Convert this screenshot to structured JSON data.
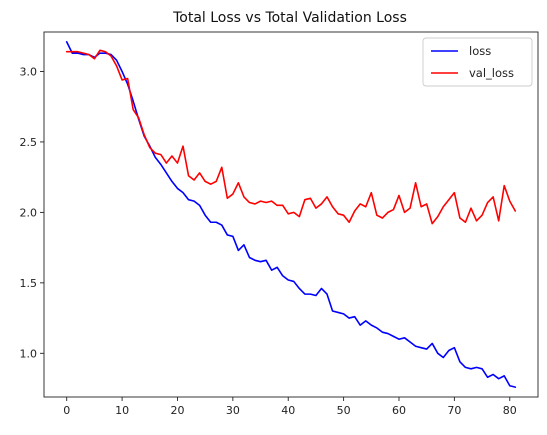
{
  "chart_data": {
    "type": "line",
    "title": "Total Loss vs Total Validation Loss",
    "xlabel": "",
    "ylabel": "",
    "xlim": [
      -4.1,
      85.1
    ],
    "ylim": [
      0.69,
      3.28
    ],
    "xticks": [
      0,
      10,
      20,
      30,
      40,
      50,
      60,
      70,
      80
    ],
    "yticks": [
      1.0,
      1.5,
      2.0,
      2.5,
      3.0
    ],
    "ytick_labels": [
      "1.0",
      "1.5",
      "2.0",
      "2.5",
      "3.0"
    ],
    "grid": false,
    "legend_position": "top-right",
    "series": [
      {
        "name": "loss",
        "color": "#0000ff",
        "values": [
          3.21,
          3.13,
          3.13,
          3.12,
          3.12,
          3.1,
          3.13,
          3.13,
          3.12,
          3.08,
          3.0,
          2.91,
          2.79,
          2.66,
          2.54,
          2.47,
          2.39,
          2.34,
          2.28,
          2.22,
          2.17,
          2.14,
          2.09,
          2.08,
          2.05,
          1.98,
          1.93,
          1.93,
          1.91,
          1.84,
          1.83,
          1.73,
          1.77,
          1.68,
          1.66,
          1.65,
          1.66,
          1.59,
          1.61,
          1.55,
          1.52,
          1.51,
          1.46,
          1.42,
          1.42,
          1.41,
          1.46,
          1.42,
          1.3,
          1.29,
          1.28,
          1.25,
          1.26,
          1.2,
          1.23,
          1.2,
          1.18,
          1.15,
          1.14,
          1.12,
          1.1,
          1.11,
          1.08,
          1.05,
          1.04,
          1.03,
          1.07,
          1.0,
          0.97,
          1.02,
          1.04,
          0.94,
          0.9,
          0.89,
          0.9,
          0.89,
          0.83,
          0.85,
          0.82,
          0.84,
          0.77,
          0.76
        ]
      },
      {
        "name": "val_loss",
        "color": "#ff0000",
        "values": [
          3.14,
          3.14,
          3.14,
          3.13,
          3.12,
          3.09,
          3.15,
          3.14,
          3.11,
          3.04,
          2.94,
          2.95,
          2.73,
          2.67,
          2.55,
          2.46,
          2.42,
          2.41,
          2.35,
          2.4,
          2.35,
          2.47,
          2.26,
          2.23,
          2.28,
          2.22,
          2.2,
          2.22,
          2.32,
          2.1,
          2.13,
          2.21,
          2.11,
          2.07,
          2.06,
          2.08,
          2.07,
          2.08,
          2.05,
          2.05,
          1.99,
          2.0,
          1.97,
          2.09,
          2.1,
          2.03,
          2.06,
          2.11,
          2.04,
          1.99,
          1.98,
          1.93,
          2.01,
          2.06,
          2.04,
          2.14,
          1.98,
          1.96,
          2.0,
          2.02,
          2.12,
          2.0,
          2.03,
          2.21,
          2.04,
          2.06,
          1.92,
          1.97,
          2.04,
          2.09,
          2.14,
          1.96,
          1.93,
          2.03,
          1.94,
          1.98,
          2.07,
          2.11,
          1.94,
          2.19,
          2.08,
          2.01
        ]
      }
    ]
  }
}
